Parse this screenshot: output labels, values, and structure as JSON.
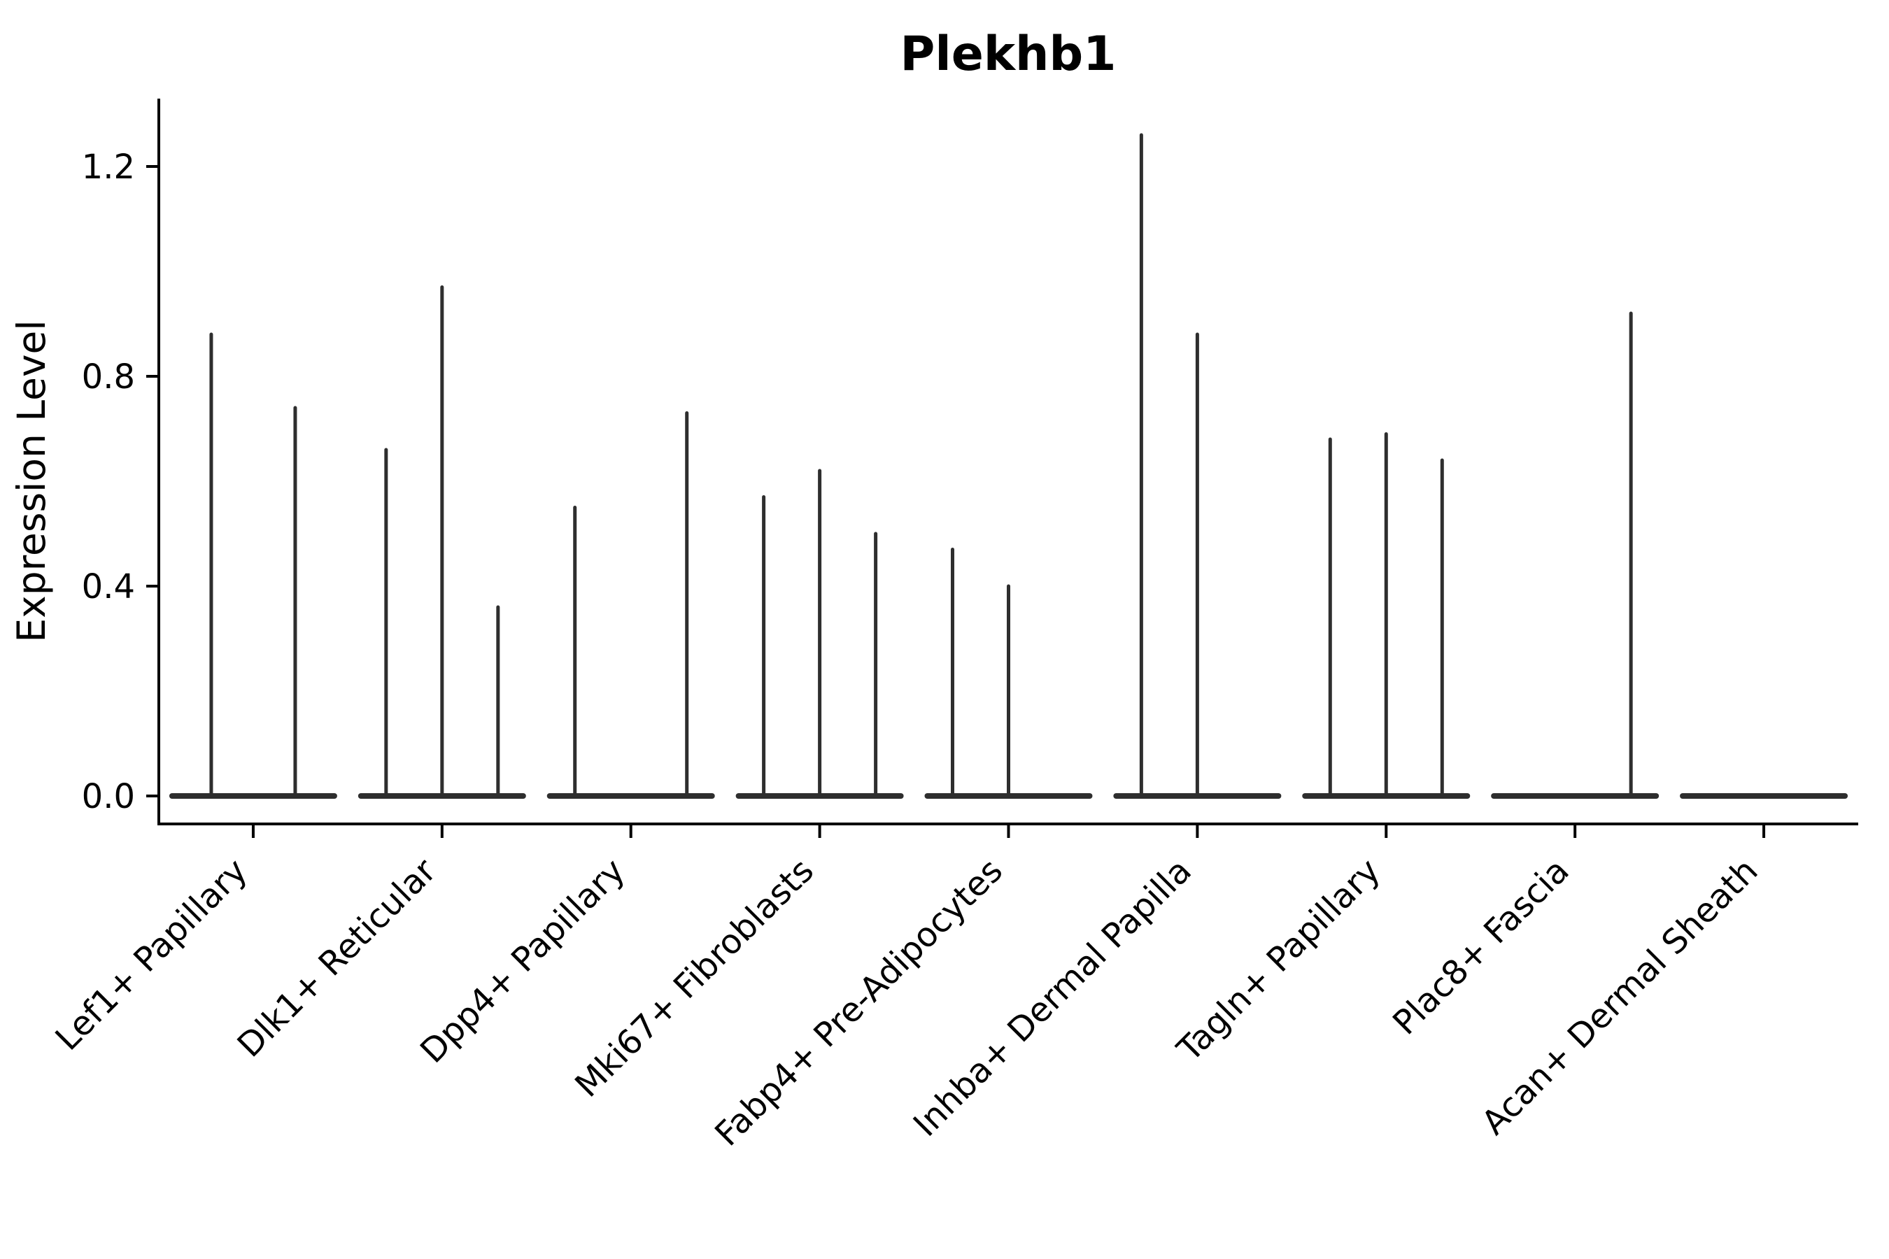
{
  "figure": {
    "title": "Plekhb1",
    "y_axis_label": "Expression Level"
  },
  "chart_data": {
    "type": "violin",
    "title": "Plekhb1",
    "xlabel": "",
    "ylabel": "Expression Level",
    "ylim": [
      -0.055,
      1.33
    ],
    "yticks": [
      "0.0",
      "0.4",
      "0.8",
      "1.2"
    ],
    "grid": false,
    "legend": "none",
    "background_color": "#ffffff",
    "ink_color": "#2e2e2e",
    "axis_color": "#000000",
    "categories": [
      "Lef1+ Papillary",
      "Dlk1+ Reticular",
      "Dpp4+ Papillary",
      "Mki67+ Fibroblasts",
      "Fabp4+ Pre-Adipocytes",
      "Inhba+ Dermal Papilla",
      "Tagln+ Papillary",
      "Plac8+ Fascia",
      "Acan+ Dermal Sheath"
    ],
    "description": "Each category shows a flat violin base at expression 0 with thin spikes; spike heights are the maximum expression values per violin (0 = flat violin, no spike).",
    "groups": [
      {
        "category": "Lef1+ Papillary",
        "violin_peaks": [
          0.88,
          0.74
        ]
      },
      {
        "category": "Dlk1+ Reticular",
        "violin_peaks": [
          0.66,
          0.97,
          0.36
        ]
      },
      {
        "category": "Dpp4+ Papillary",
        "violin_peaks": [
          0.55,
          0.0,
          0.73
        ]
      },
      {
        "category": "Mki67+ Fibroblasts",
        "violin_peaks": [
          0.57,
          0.62,
          0.5
        ]
      },
      {
        "category": "Fabp4+ Pre-Adipocytes",
        "violin_peaks": [
          0.47,
          0.4,
          0.0
        ]
      },
      {
        "category": "Inhba+ Dermal Papilla",
        "violin_peaks": [
          1.26,
          0.88,
          0.0
        ]
      },
      {
        "category": "Tagln+ Papillary",
        "violin_peaks": [
          0.68,
          0.69,
          0.64
        ]
      },
      {
        "category": "Plac8+ Fascia",
        "violin_peaks": [
          0.0,
          0.0,
          0.92
        ]
      },
      {
        "category": "Acan+ Dermal Sheath",
        "violin_peaks": [
          0.0,
          0.0,
          0.0
        ]
      }
    ]
  }
}
